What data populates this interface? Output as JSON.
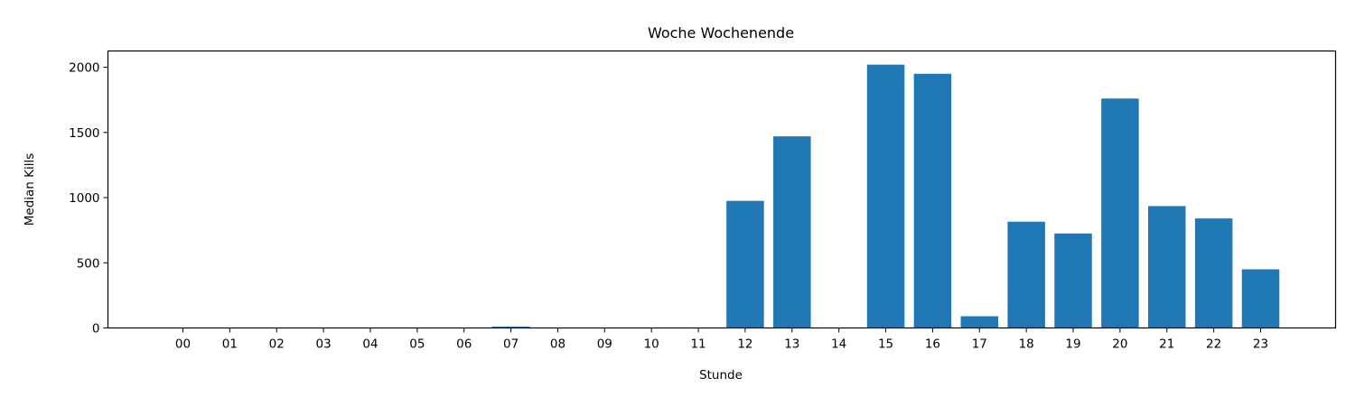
{
  "chart_data": {
    "type": "bar",
    "title": "Woche Wochenende",
    "xlabel": "Stunde",
    "ylabel": "Median Kills",
    "categories": [
      "00",
      "01",
      "02",
      "03",
      "04",
      "05",
      "06",
      "07",
      "08",
      "09",
      "10",
      "11",
      "12",
      "13",
      "14",
      "15",
      "16",
      "17",
      "18",
      "19",
      "20",
      "21",
      "22",
      "23"
    ],
    "values": [
      0,
      0,
      0,
      0,
      0,
      0,
      0,
      10,
      3,
      0,
      0,
      0,
      975,
      1470,
      0,
      2020,
      1950,
      90,
      815,
      725,
      1760,
      935,
      840,
      450
    ],
    "ylim": [
      0,
      2125
    ],
    "yticks": [
      0,
      500,
      1000,
      1500,
      2000
    ],
    "grid": false,
    "bar_color": "#1f77b4"
  }
}
